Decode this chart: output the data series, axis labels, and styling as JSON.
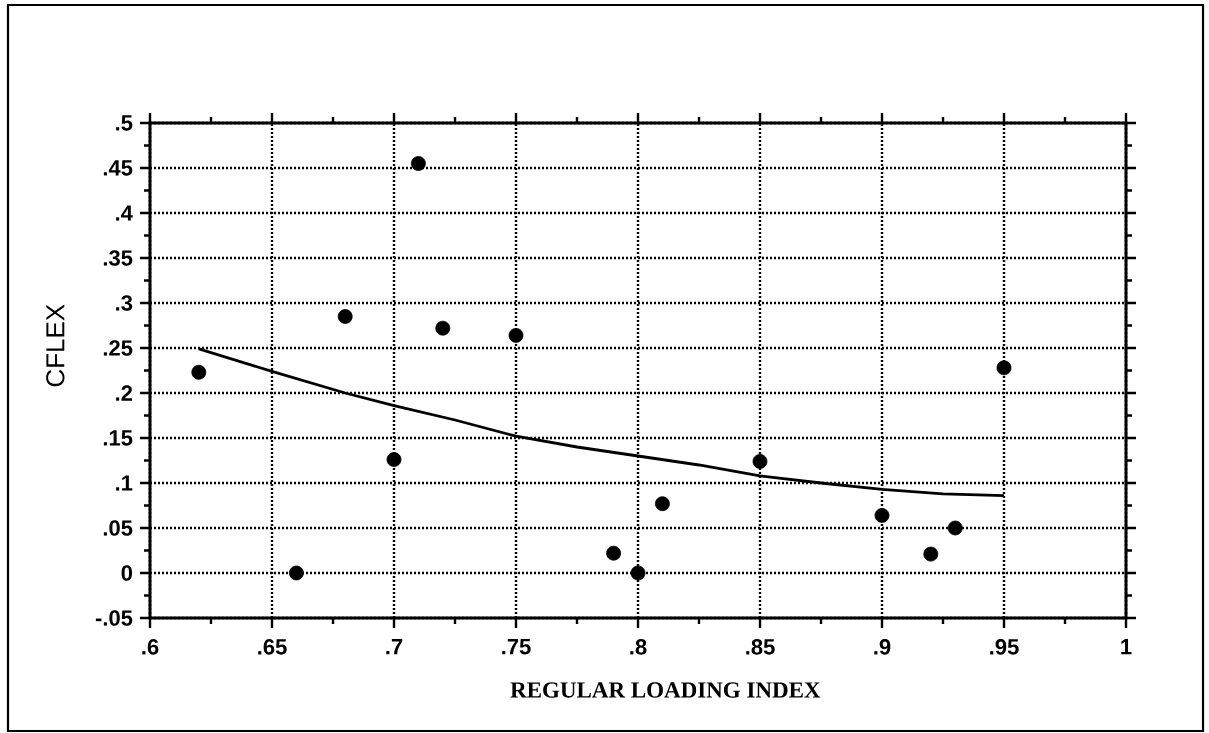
{
  "chart_data": {
    "type": "scatter",
    "xlabel": "REGULAR LOADING INDEX",
    "ylabel": "CFLEX",
    "xlim": [
      0.6,
      1
    ],
    "ylim": [
      -0.05,
      0.5
    ],
    "xticks": [
      {
        "value": 0.6,
        "label": ".6"
      },
      {
        "value": 0.65,
        "label": ".65"
      },
      {
        "value": 0.7,
        "label": ".7"
      },
      {
        "value": 0.75,
        "label": ".75"
      },
      {
        "value": 0.8,
        "label": ".8"
      },
      {
        "value": 0.85,
        "label": ".85"
      },
      {
        "value": 0.9,
        "label": ".9"
      },
      {
        "value": 0.95,
        "label": ".95"
      },
      1
    ],
    "yticks": [
      {
        "value": -0.05,
        "label": "-.05"
      },
      0,
      {
        "value": 0.05,
        "label": ".05"
      },
      {
        "value": 0.1,
        "label": ".1"
      },
      {
        "value": 0.15,
        "label": ".15"
      },
      {
        "value": 0.2,
        "label": ".2"
      },
      {
        "value": 0.25,
        "label": ".25"
      },
      {
        "value": 0.3,
        "label": ".3"
      },
      {
        "value": 0.35,
        "label": ".35"
      },
      {
        "value": 0.4,
        "label": ".4"
      },
      {
        "value": 0.45,
        "label": ".45"
      },
      {
        "value": 0.5,
        "label": ".5"
      }
    ],
    "grid": true,
    "series": [
      {
        "type": "scatter",
        "color": "#000000",
        "marker": "circle",
        "x": [
          0.62,
          0.66,
          0.68,
          0.7,
          0.71,
          0.72,
          0.75,
          0.79,
          0.8,
          0.81,
          0.85,
          0.9,
          0.92,
          0.93,
          0.95
        ],
        "values": [
          0.223,
          0,
          0.285,
          0.126,
          0.455,
          0.272,
          0.264,
          0.022,
          0,
          0.077,
          0.124,
          0.064,
          0.021,
          0.05,
          0.228
        ]
      },
      {
        "type": "line",
        "color": "#000000",
        "marker": "none",
        "line_style": "solid",
        "x": [
          0.62,
          0.65,
          0.68,
          0.7,
          0.725,
          0.75,
          0.775,
          0.8,
          0.825,
          0.85,
          0.875,
          0.9,
          0.925,
          0.95
        ],
        "values": [
          0.249,
          0.224,
          0.2,
          0.186,
          0.17,
          0.152,
          0.14,
          0.13,
          0.12,
          0.108,
          0.1,
          0.093,
          0.088,
          0.086
        ]
      }
    ]
  }
}
